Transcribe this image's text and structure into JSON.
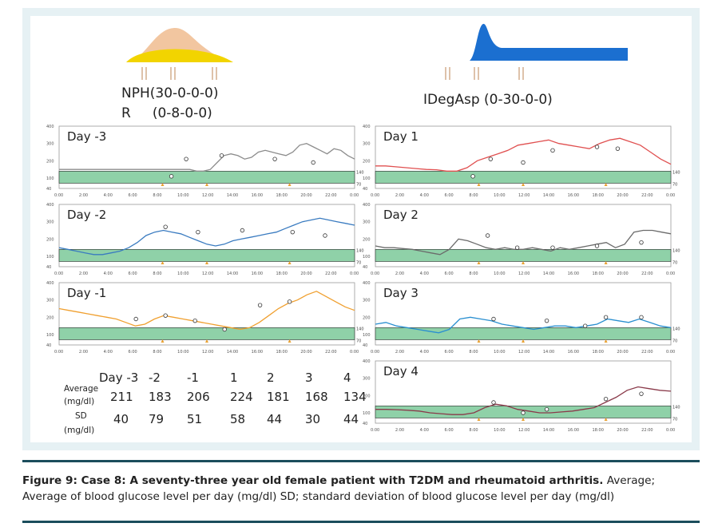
{
  "left_regimen": {
    "line1": "NPH(30-0-0-0)",
    "line2": "R     (0-8-0-0)"
  },
  "right_regimen": {
    "line1": "IDegAsp (0-30-0-0)"
  },
  "left_charts": [
    {
      "label": "Day -3",
      "y_ticks": [
        "400",
        "300",
        "200",
        "100",
        "40"
      ],
      "x_ticks": [
        "0:00",
        "2:00",
        "4:00",
        "6:00",
        "8:00",
        "10:00",
        "12:00",
        "14:00",
        "16:00",
        "18:00",
        "20:00",
        "22:00",
        "0:00"
      ],
      "color": "#8c8c8c"
    },
    {
      "label": "Day -2",
      "y_ticks": [
        "400",
        "300",
        "200",
        "100",
        "40"
      ],
      "x_ticks": [
        "0:00",
        "2:00",
        "4:00",
        "6:00",
        "8:00",
        "10:00",
        "12:00",
        "14:00",
        "16:00",
        "18:00",
        "20:00",
        "22:00",
        "0:00"
      ],
      "color": "#3a7bc0"
    },
    {
      "label": "Day -1",
      "y_ticks": [
        "400",
        "300",
        "200",
        "100",
        "40"
      ],
      "x_ticks": [
        "0:00",
        "2:00",
        "4:00",
        "6:00",
        "8:00",
        "10:00",
        "12:00",
        "14:00",
        "16:00",
        "18:00",
        "20:00",
        "22:00",
        "0:00"
      ],
      "color": "#f0a030"
    }
  ],
  "right_charts": [
    {
      "label": "Day 1",
      "y_ticks": [
        "400",
        "300",
        "200",
        "100",
        "40"
      ],
      "x_ticks": [
        "0:00",
        "2:00",
        "4:00",
        "6:00",
        "8:00",
        "10:00",
        "12:00",
        "14:00",
        "16:00",
        "18:00",
        "20:00",
        "22:00",
        "0:00"
      ],
      "color": "#e05050"
    },
    {
      "label": "Day 2",
      "y_ticks": [
        "400",
        "300",
        "200",
        "100",
        "40"
      ],
      "x_ticks": [
        "0:00",
        "2:00",
        "4:00",
        "6:00",
        "8:00",
        "10:00",
        "12:00",
        "14:00",
        "16:00",
        "18:00",
        "20:00",
        "22:00",
        "0:00"
      ],
      "color": "#6b6b6b"
    },
    {
      "label": "Day 3",
      "y_ticks": [
        "400",
        "300",
        "200",
        "100",
        "40"
      ],
      "x_ticks": [
        "0:00",
        "2:00",
        "4:00",
        "6:00",
        "8:00",
        "10:00",
        "12:00",
        "14:00",
        "16:00",
        "18:00",
        "20:00",
        "22:00",
        "0:00"
      ],
      "color": "#2a8fd0"
    },
    {
      "label": "Day 4",
      "y_ticks": [
        "400",
        "300",
        "200",
        "100",
        "40"
      ],
      "x_ticks": [
        "0:00",
        "2:00",
        "4:00",
        "6:00",
        "8:00",
        "10:00",
        "12:00",
        "14:00",
        "16:00",
        "18:00",
        "20:00",
        "22:00",
        "0:00"
      ],
      "color": "#8a3a4a"
    }
  ],
  "range_labels": {
    "upper": "140",
    "lower": "70"
  },
  "summary_table": {
    "row_header_1": "Average",
    "row_header_1b": "(mg/dl)",
    "row_header_2": "SD",
    "row_header_2b": "(mg/dl)",
    "columns": [
      "Day -3",
      "-2",
      "-1",
      "1",
      "2",
      "3",
      "4"
    ],
    "average": [
      "211",
      "183",
      "206",
      "224",
      "181",
      "168",
      "134"
    ],
    "sd": [
      "40",
      "79",
      "51",
      "58",
      "44",
      "30",
      "44"
    ]
  },
  "caption": {
    "bold": "Figure 9: Case 8: A seventy-three year old female patient with T2DM and rheumatoid arthritis.",
    "normal": " Average; Average of blood glucose level per day (mg/dl) SD; standard deviation of blood glucose level per day (mg/dl)"
  },
  "colors": {
    "target_band": "#8fd1a8",
    "nph_body": "#f2c6a0",
    "nph_base": "#f2d400",
    "ideg": "#1b6fd0",
    "frame": "#e6f1f4",
    "rule": "#1b4d5c"
  },
  "icons": [
    "fork-knife-icon"
  ]
}
